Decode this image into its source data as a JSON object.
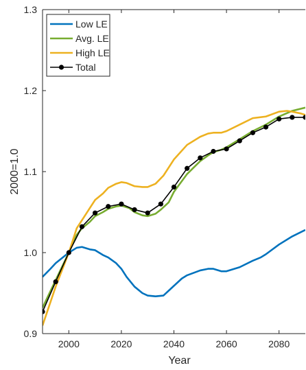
{
  "chart_data": {
    "type": "line",
    "title": "",
    "xlabel": "Year",
    "ylabel": "2000=1.0",
    "xlim": [
      1990,
      2090
    ],
    "ylim": [
      0.9,
      1.3
    ],
    "xticks": [
      2000,
      2020,
      2040,
      2060,
      2080
    ],
    "yticks": [
      0.9,
      1.0,
      1.1,
      1.2,
      1.3
    ],
    "xtick_labels": [
      "2000",
      "2020",
      "2040",
      "2060",
      "2080"
    ],
    "ytick_labels": [
      "0.9",
      "1.0",
      "1.1",
      "1.2",
      "1.3"
    ],
    "grid": false,
    "legend_position": "top-left",
    "series": [
      {
        "name": "Low LE",
        "color": "#0072BD",
        "marker": "none",
        "points": [
          [
            1990,
            0.97
          ],
          [
            1993,
            0.98
          ],
          [
            1995,
            0.987
          ],
          [
            2000,
            1.0
          ],
          [
            2003,
            1.006
          ],
          [
            2005,
            1.007
          ],
          [
            2008,
            1.004
          ],
          [
            2010,
            1.003
          ],
          [
            2013,
            0.997
          ],
          [
            2015,
            0.994
          ],
          [
            2018,
            0.987
          ],
          [
            2020,
            0.98
          ],
          [
            2022,
            0.97
          ],
          [
            2025,
            0.958
          ],
          [
            2028,
            0.95
          ],
          [
            2030,
            0.947
          ],
          [
            2033,
            0.946
          ],
          [
            2036,
            0.947
          ],
          [
            2040,
            0.959
          ],
          [
            2043,
            0.968
          ],
          [
            2045,
            0.972
          ],
          [
            2050,
            0.978
          ],
          [
            2053,
            0.98
          ],
          [
            2055,
            0.98
          ],
          [
            2058,
            0.977
          ],
          [
            2060,
            0.977
          ],
          [
            2065,
            0.982
          ],
          [
            2070,
            0.99
          ],
          [
            2073,
            0.994
          ],
          [
            2075,
            0.998
          ],
          [
            2080,
            1.01
          ],
          [
            2085,
            1.02
          ],
          [
            2090,
            1.028
          ]
        ]
      },
      {
        "name": "Avg. LE",
        "color": "#77AC30",
        "marker": "none",
        "points": [
          [
            1990,
            0.932
          ],
          [
            1995,
            0.966
          ],
          [
            2000,
            1.0
          ],
          [
            2003,
            1.022
          ],
          [
            2005,
            1.03
          ],
          [
            2008,
            1.038
          ],
          [
            2010,
            1.045
          ],
          [
            2013,
            1.05
          ],
          [
            2015,
            1.054
          ],
          [
            2018,
            1.057
          ],
          [
            2020,
            1.058
          ],
          [
            2023,
            1.055
          ],
          [
            2025,
            1.05
          ],
          [
            2028,
            1.046
          ],
          [
            2030,
            1.045
          ],
          [
            2033,
            1.048
          ],
          [
            2035,
            1.053
          ],
          [
            2038,
            1.062
          ],
          [
            2040,
            1.075
          ],
          [
            2045,
            1.097
          ],
          [
            2050,
            1.113
          ],
          [
            2053,
            1.12
          ],
          [
            2055,
            1.124
          ],
          [
            2058,
            1.127
          ],
          [
            2060,
            1.13
          ],
          [
            2065,
            1.14
          ],
          [
            2070,
            1.15
          ],
          [
            2075,
            1.158
          ],
          [
            2080,
            1.168
          ],
          [
            2085,
            1.175
          ],
          [
            2090,
            1.179
          ]
        ]
      },
      {
        "name": "High LE",
        "color": "#EDB120",
        "marker": "none",
        "points": [
          [
            1990,
            0.91
          ],
          [
            1995,
            0.958
          ],
          [
            2000,
            1.0
          ],
          [
            2003,
            1.03
          ],
          [
            2005,
            1.04
          ],
          [
            2008,
            1.055
          ],
          [
            2010,
            1.065
          ],
          [
            2013,
            1.073
          ],
          [
            2015,
            1.08
          ],
          [
            2018,
            1.085
          ],
          [
            2020,
            1.087
          ],
          [
            2022,
            1.086
          ],
          [
            2025,
            1.082
          ],
          [
            2028,
            1.081
          ],
          [
            2030,
            1.081
          ],
          [
            2033,
            1.085
          ],
          [
            2036,
            1.095
          ],
          [
            2040,
            1.115
          ],
          [
            2045,
            1.133
          ],
          [
            2050,
            1.143
          ],
          [
            2053,
            1.147
          ],
          [
            2055,
            1.148
          ],
          [
            2058,
            1.148
          ],
          [
            2060,
            1.15
          ],
          [
            2065,
            1.158
          ],
          [
            2070,
            1.166
          ],
          [
            2075,
            1.168
          ],
          [
            2080,
            1.174
          ],
          [
            2083,
            1.175
          ],
          [
            2085,
            1.174
          ],
          [
            2088,
            1.172
          ],
          [
            2090,
            1.17
          ]
        ]
      },
      {
        "name": "Total",
        "color": "#000000",
        "marker": "circle",
        "points": [
          [
            1990,
            0.927
          ],
          [
            1995,
            0.964
          ],
          [
            2000,
            1.0
          ],
          [
            2005,
            1.032
          ],
          [
            2010,
            1.049
          ],
          [
            2015,
            1.057
          ],
          [
            2020,
            1.06
          ],
          [
            2025,
            1.053
          ],
          [
            2030,
            1.049
          ],
          [
            2035,
            1.06
          ],
          [
            2040,
            1.081
          ],
          [
            2045,
            1.104
          ],
          [
            2050,
            1.117
          ],
          [
            2055,
            1.125
          ],
          [
            2060,
            1.128
          ],
          [
            2065,
            1.138
          ],
          [
            2070,
            1.148
          ],
          [
            2075,
            1.155
          ],
          [
            2080,
            1.165
          ],
          [
            2085,
            1.167
          ],
          [
            2090,
            1.167
          ]
        ]
      }
    ]
  }
}
